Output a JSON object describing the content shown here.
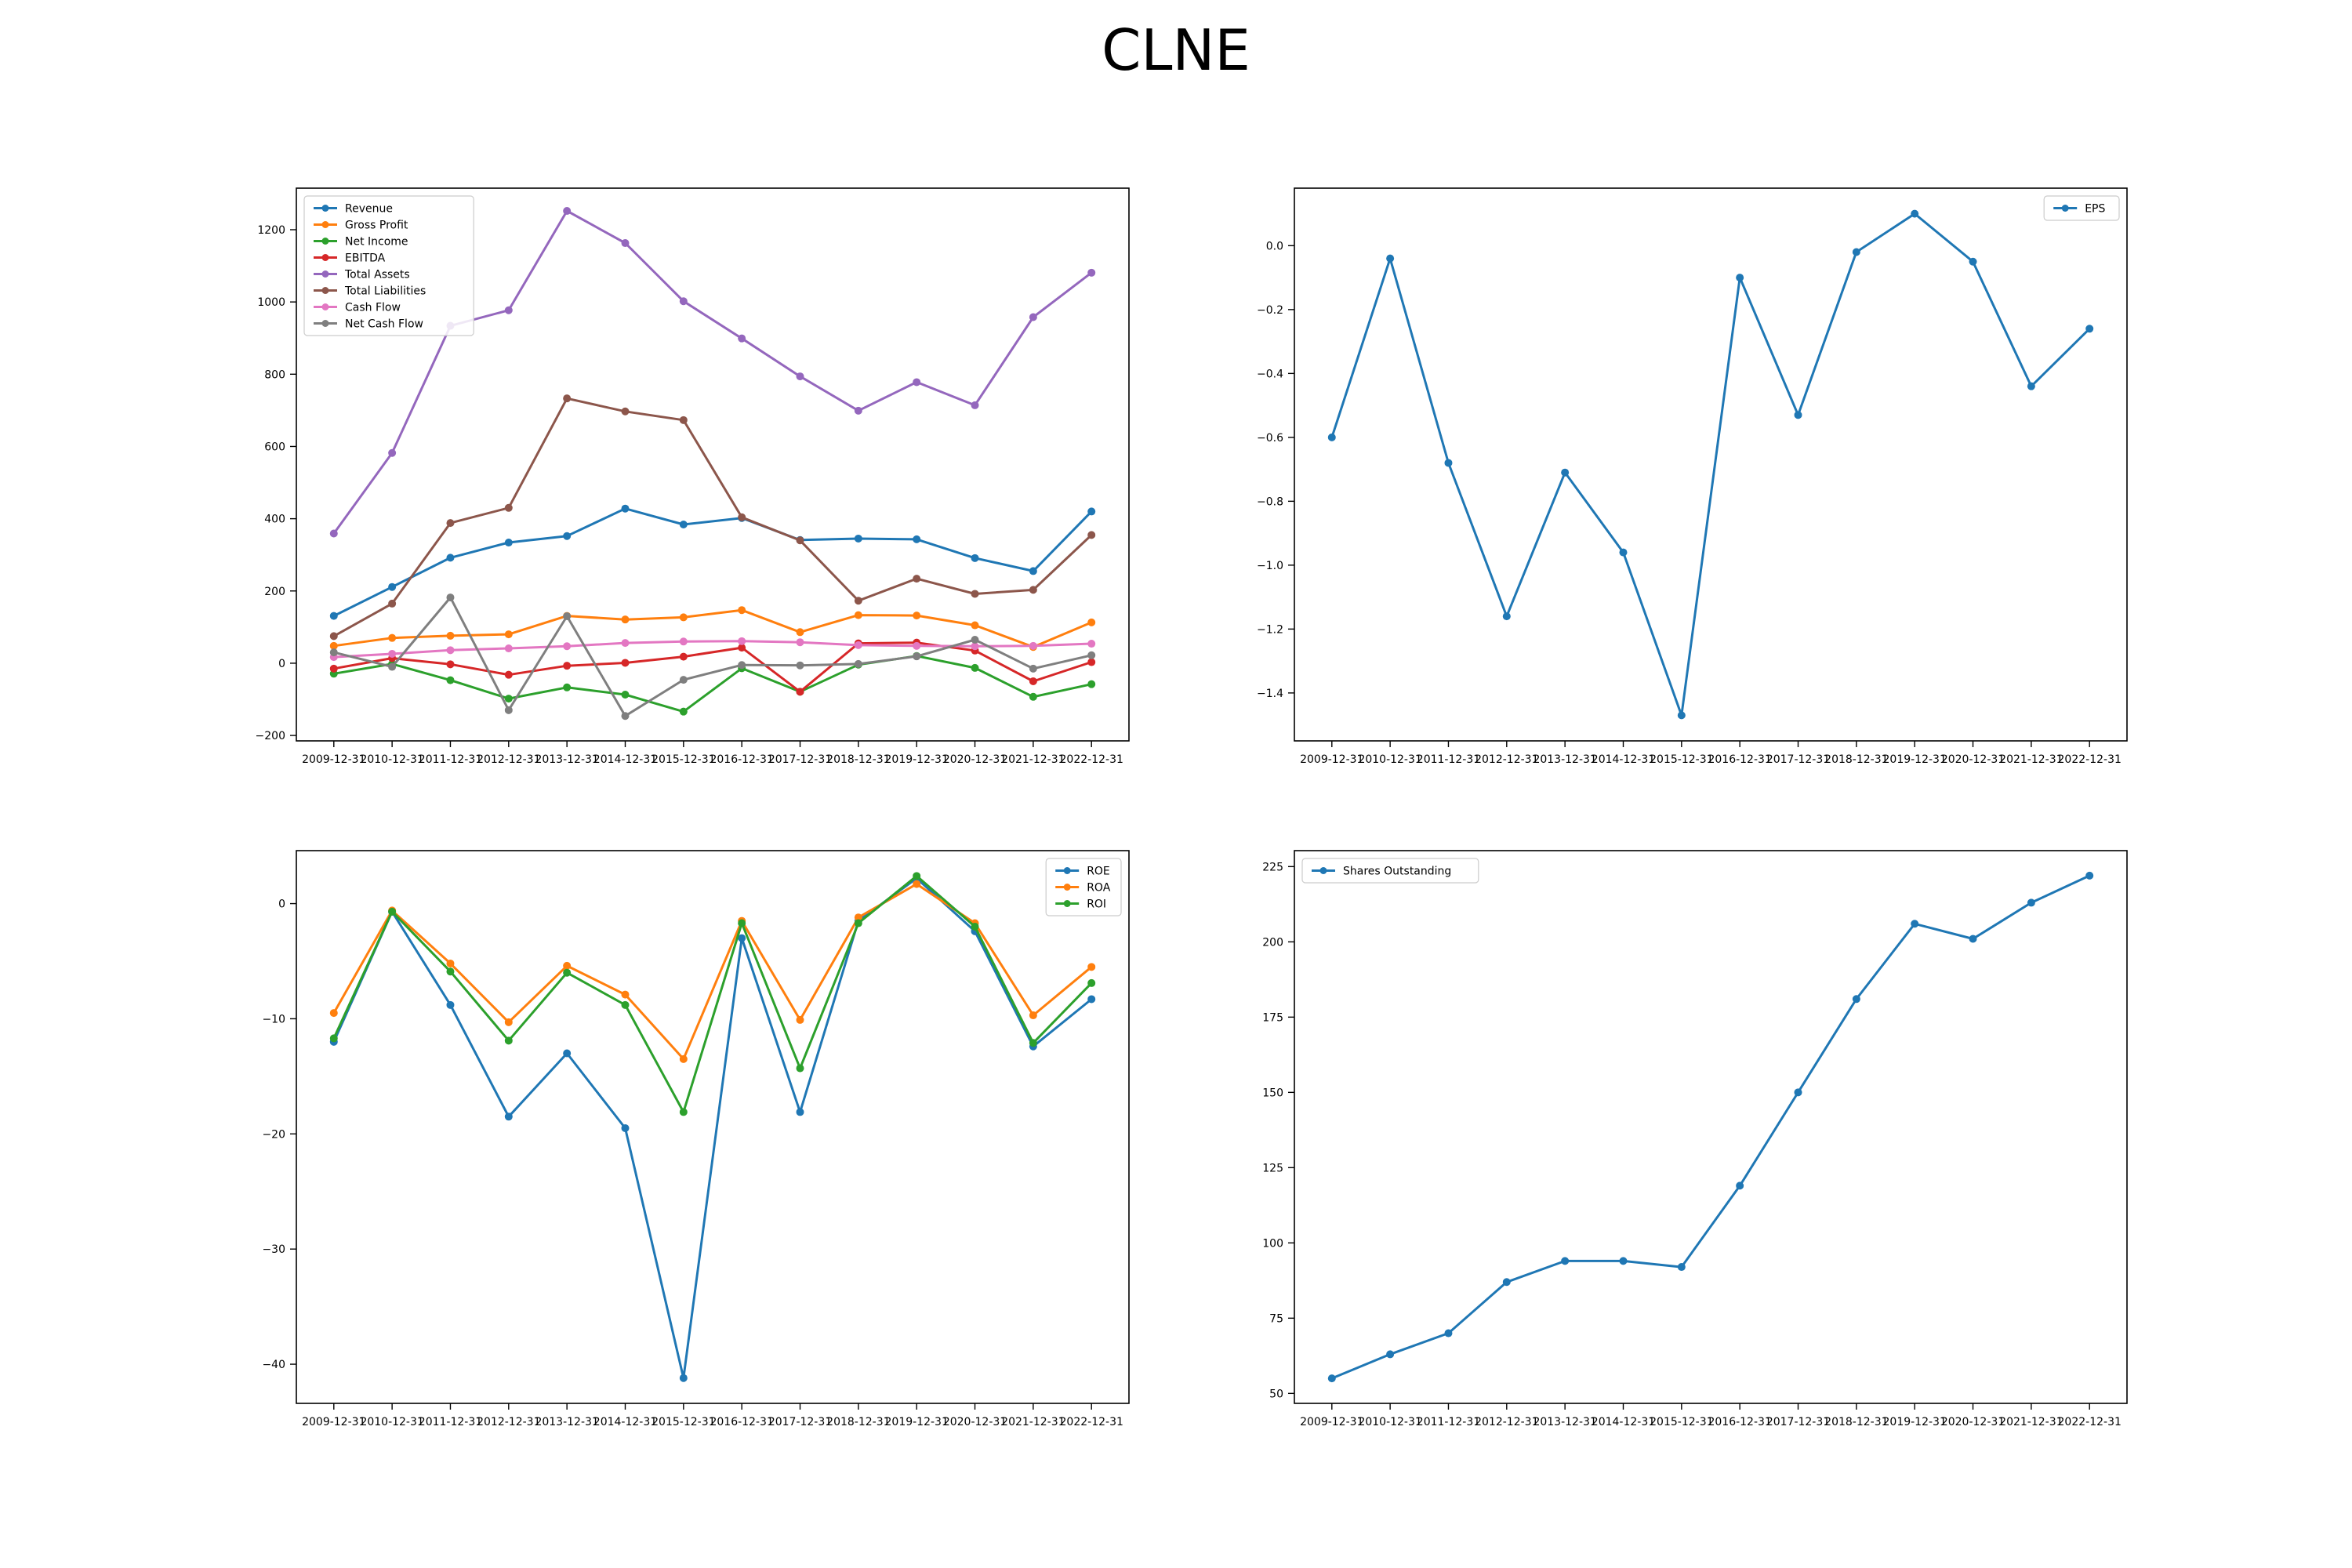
{
  "title": "CLNE",
  "colors": [
    "#1f77b4",
    "#ff7f0e",
    "#2ca02c",
    "#d62728",
    "#9467bd",
    "#8c564b",
    "#e377c2",
    "#7f7f7f"
  ],
  "chart_data": [
    {
      "type": "line",
      "x": [
        "2009-12-31",
        "2010-12-31",
        "2011-12-31",
        "2012-12-31",
        "2013-12-31",
        "2014-12-31",
        "2015-12-31",
        "2016-12-31",
        "2017-12-31",
        "2018-12-31",
        "2019-12-31",
        "2020-12-31",
        "2021-12-31",
        "2022-12-31"
      ],
      "ylim": [
        -215,
        1315
      ],
      "yticks": [
        -200,
        0,
        200,
        400,
        600,
        800,
        1000,
        1200
      ],
      "yticklabels": [
        "−200",
        "0",
        "200",
        "400",
        "600",
        "800",
        "1000",
        "1200"
      ],
      "legend_position": "upper-left",
      "series": [
        {
          "name": "Revenue",
          "values": [
            131,
            211,
            292,
            334,
            352,
            428,
            384,
            402,
            341,
            345,
            343,
            291,
            255,
            420
          ]
        },
        {
          "name": "Gross Profit",
          "values": [
            48,
            70,
            76,
            80,
            131,
            121,
            127,
            147,
            86,
            133,
            132,
            105,
            45,
            113
          ]
        },
        {
          "name": "Net Income",
          "values": [
            -29,
            -2,
            -47,
            -98,
            -67,
            -87,
            -134,
            -14,
            -79,
            -4,
            20,
            -13,
            -93,
            -58
          ]
        },
        {
          "name": "EBITDA",
          "values": [
            -15,
            14,
            -3,
            -32,
            -7,
            1,
            18,
            43,
            -79,
            55,
            57,
            35,
            -50,
            3
          ]
        },
        {
          "name": "Total Assets",
          "values": [
            359,
            582,
            934,
            977,
            1252,
            1163,
            1002,
            899,
            794,
            699,
            778,
            714,
            958,
            1081
          ]
        },
        {
          "name": "Total Liabilities",
          "values": [
            75,
            165,
            388,
            430,
            733,
            697,
            673,
            404,
            340,
            173,
            234,
            192,
            203,
            355
          ]
        },
        {
          "name": "Cash Flow",
          "values": [
            17,
            26,
            36,
            41,
            47,
            56,
            60,
            61,
            58,
            50,
            48,
            47,
            48,
            54
          ]
        },
        {
          "name": "Net Cash Flow",
          "values": [
            30,
            -10,
            182,
            -130,
            130,
            -146,
            -46,
            -5,
            -6,
            -2,
            19,
            65,
            -15,
            22
          ]
        }
      ]
    },
    {
      "type": "line",
      "x": [
        "2009-12-31",
        "2010-12-31",
        "2011-12-31",
        "2012-12-31",
        "2013-12-31",
        "2014-12-31",
        "2015-12-31",
        "2016-12-31",
        "2017-12-31",
        "2018-12-31",
        "2019-12-31",
        "2020-12-31",
        "2021-12-31",
        "2022-12-31"
      ],
      "ylim": [
        -1.55,
        0.18
      ],
      "yticks": [
        -1.4,
        -1.2,
        -1.0,
        -0.8,
        -0.6,
        -0.4,
        -0.2,
        0.0
      ],
      "yticklabels": [
        "−1.4",
        "−1.2",
        "−1.0",
        "−0.8",
        "−0.6",
        "−0.4",
        "−0.2",
        "0.0"
      ],
      "legend_position": "upper-right",
      "series": [
        {
          "name": "EPS",
          "values": [
            -0.6,
            -0.04,
            -0.68,
            -1.16,
            -0.71,
            -0.96,
            -1.47,
            -0.1,
            -0.53,
            -0.02,
            0.1,
            -0.05,
            -0.44,
            -0.26
          ]
        }
      ]
    },
    {
      "type": "line",
      "x": [
        "2009-12-31",
        "2010-12-31",
        "2011-12-31",
        "2012-12-31",
        "2013-12-31",
        "2014-12-31",
        "2015-12-31",
        "2016-12-31",
        "2017-12-31",
        "2018-12-31",
        "2019-12-31",
        "2020-12-31",
        "2021-12-31",
        "2022-12-31"
      ],
      "ylim": [
        -43.4,
        4.6
      ],
      "yticks": [
        -40,
        -30,
        -20,
        -10,
        0
      ],
      "yticklabels": [
        "−40",
        "−30",
        "−20",
        "−10",
        "0"
      ],
      "legend_position": "upper-right",
      "series": [
        {
          "name": "ROE",
          "values": [
            -12.0,
            -0.7,
            -8.8,
            -18.5,
            -13.0,
            -19.5,
            -41.2,
            -3.0,
            -18.1,
            -1.5,
            2.2,
            -2.4,
            -12.4,
            -8.3
          ]
        },
        {
          "name": "ROA",
          "values": [
            -9.5,
            -0.6,
            -5.2,
            -10.3,
            -5.4,
            -7.9,
            -13.5,
            -1.5,
            -10.1,
            -1.2,
            1.7,
            -1.7,
            -9.7,
            -5.5
          ]
        },
        {
          "name": "ROI",
          "values": [
            -11.7,
            -0.7,
            -5.9,
            -11.9,
            -6.0,
            -8.8,
            -18.1,
            -1.7,
            -14.3,
            -1.7,
            2.4,
            -2.0,
            -12.1,
            -6.9
          ]
        }
      ]
    },
    {
      "type": "line",
      "x": [
        "2009-12-31",
        "2010-12-31",
        "2011-12-31",
        "2012-12-31",
        "2013-12-31",
        "2014-12-31",
        "2015-12-31",
        "2016-12-31",
        "2017-12-31",
        "2018-12-31",
        "2019-12-31",
        "2020-12-31",
        "2021-12-31",
        "2022-12-31"
      ],
      "ylim": [
        46.7,
        230.3
      ],
      "yticks": [
        50,
        75,
        100,
        125,
        150,
        175,
        200,
        225
      ],
      "yticklabels": [
        "50",
        "75",
        "100",
        "125",
        "150",
        "175",
        "200",
        "225"
      ],
      "legend_position": "upper-left",
      "series": [
        {
          "name": "Shares Outstanding",
          "values": [
            55,
            63,
            70,
            87,
            94,
            94,
            92,
            119,
            150,
            181,
            206,
            201,
            213,
            222
          ]
        }
      ]
    }
  ]
}
